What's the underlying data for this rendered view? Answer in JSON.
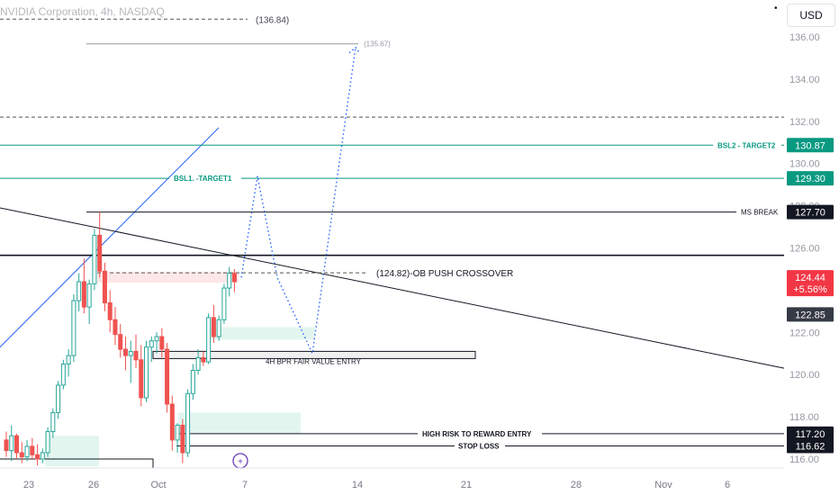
{
  "header": {
    "title": "NVIDIA Corporation, 4h, NASDAQ",
    "currency": "USD"
  },
  "colors": {
    "up": "#26a69a",
    "down": "#ef5350",
    "teal": "#089981",
    "red": "#f23645",
    "black": "#131722",
    "blue": "#2962ff",
    "projection": "#2962ff"
  },
  "chart_data": {
    "type": "candlestick",
    "title": "NVIDIA Corporation, 4h, NASDAQ",
    "ylim": [
      115.7,
      137.6
    ],
    "y_ticks": [
      116.0,
      118.0,
      120.0,
      122.0,
      124.0,
      126.0,
      128.0,
      130.0,
      132.0,
      134.0,
      136.0
    ],
    "x_ticks": [
      "23",
      "26",
      "Oct",
      "7",
      "14",
      "21",
      "28",
      "Nov",
      "6"
    ],
    "candles": [
      [
        116.9,
        117.3,
        116.1,
        116.4
      ],
      [
        116.4,
        117.6,
        115.9,
        117.1
      ],
      [
        117.1,
        117.2,
        116.0,
        116.3
      ],
      [
        116.3,
        116.8,
        115.8,
        116.1
      ],
      [
        116.1,
        116.9,
        115.9,
        116.6
      ],
      [
        116.6,
        117.0,
        116.0,
        116.2
      ],
      [
        116.2,
        116.7,
        115.7,
        116.0
      ],
      [
        116.0,
        116.5,
        115.8,
        116.3
      ],
      [
        116.3,
        117.5,
        116.1,
        117.3
      ],
      [
        117.3,
        118.4,
        117.0,
        118.2
      ],
      [
        118.2,
        119.7,
        117.9,
        119.5
      ],
      [
        119.5,
        120.7,
        119.3,
        120.5
      ],
      [
        120.5,
        121.2,
        119.9,
        120.9
      ],
      [
        120.9,
        123.8,
        120.6,
        123.5
      ],
      [
        123.5,
        124.8,
        123.0,
        124.4
      ],
      [
        124.4,
        125.5,
        122.9,
        123.2
      ],
      [
        123.2,
        124.5,
        122.4,
        124.3
      ],
      [
        124.3,
        126.9,
        124.0,
        126.6
      ],
      [
        126.6,
        127.7,
        124.6,
        124.9
      ],
      [
        124.9,
        125.3,
        123.0,
        123.4
      ],
      [
        123.4,
        124.0,
        122.0,
        122.6
      ],
      [
        122.6,
        123.2,
        121.4,
        121.9
      ],
      [
        121.9,
        122.4,
        120.8,
        121.2
      ],
      [
        121.2,
        121.8,
        120.2,
        120.9
      ],
      [
        120.9,
        121.6,
        119.6,
        121.1
      ],
      [
        121.1,
        121.9,
        120.3,
        120.7
      ],
      [
        120.7,
        121.4,
        118.5,
        118.9
      ],
      [
        118.9,
        121.6,
        118.7,
        121.3
      ],
      [
        121.3,
        121.8,
        120.6,
        121.6
      ],
      [
        121.6,
        122.0,
        121.0,
        121.8
      ],
      [
        121.8,
        122.2,
        120.8,
        121.2
      ],
      [
        121.2,
        121.5,
        118.2,
        118.6
      ],
      [
        118.6,
        119.0,
        116.4,
        116.9
      ],
      [
        116.9,
        117.7,
        116.3,
        117.6
      ],
      [
        117.6,
        117.9,
        115.8,
        116.3
      ],
      [
        116.3,
        119.3,
        116.1,
        119.1
      ],
      [
        119.1,
        120.5,
        118.8,
        120.2
      ],
      [
        120.2,
        121.2,
        120.0,
        120.8
      ],
      [
        120.8,
        121.1,
        120.4,
        120.6
      ],
      [
        120.6,
        122.9,
        120.5,
        122.7
      ],
      [
        122.7,
        123.3,
        121.5,
        121.8
      ],
      [
        121.8,
        122.8,
        121.6,
        122.6
      ],
      [
        122.6,
        124.3,
        122.4,
        124.1
      ],
      [
        124.1,
        125.1,
        123.7,
        124.8
      ],
      [
        124.8,
        125.0,
        123.9,
        124.4
      ]
    ],
    "levels": [
      {
        "value": 136.84,
        "label": "(136.84)",
        "style": "dashed",
        "color": "#787b86"
      },
      {
        "value": 135.67,
        "label": "(135.67)",
        "style": "solid",
        "color": "#9598a1"
      },
      {
        "value": 132.2,
        "style": "dashed",
        "color": "#787b86"
      },
      {
        "value": 130.87,
        "label": "BSL2 - TARGET2",
        "style": "solid",
        "color": "#089981"
      },
      {
        "value": 129.3,
        "label": "BSL1. -TARGET1",
        "style": "solid",
        "color": "#089981"
      },
      {
        "value": 127.7,
        "label": "MS BREAK",
        "style": "solid",
        "color": "#131722"
      },
      {
        "value": 125.65,
        "style": "solid-thick",
        "color": "#131722"
      },
      {
        "value": 124.82,
        "label": "(124.82)-OB PUSH CROSSOVER",
        "style": "dashed",
        "color": "#131722"
      },
      {
        "value": 117.2,
        "label": "HIGH RISK TO REWARD ENTRY",
        "style": "solid",
        "color": "#131722"
      },
      {
        "value": 116.62,
        "label": "STOP LOSS",
        "style": "solid",
        "color": "#131722"
      }
    ],
    "annotations": {
      "fvg_label": "4H BPR FAIR VALUE ENTRY",
      "projection_points": [
        124.6,
        129.4,
        124.6,
        121.0,
        135.5
      ]
    },
    "price_badges": [
      {
        "text": "130.87",
        "bg": "#089981",
        "fg": "#ffffff"
      },
      {
        "text": "129.30",
        "bg": "#089981",
        "fg": "#ffffff"
      },
      {
        "text": "127.70",
        "bg": "#131722",
        "fg": "#ffffff"
      },
      {
        "text": "124.44",
        "bg": "#f23645",
        "fg": "#ffffff"
      },
      {
        "text": "+5.56%",
        "bg": "#f23645",
        "fg": "#ffffff"
      },
      {
        "text": "122.85",
        "bg": "#363a45",
        "fg": "#ffffff"
      },
      {
        "text": "117.20",
        "bg": "#131722",
        "fg": "#ffffff"
      },
      {
        "text": "116.62",
        "bg": "#131722",
        "fg": "#ffffff"
      }
    ]
  }
}
